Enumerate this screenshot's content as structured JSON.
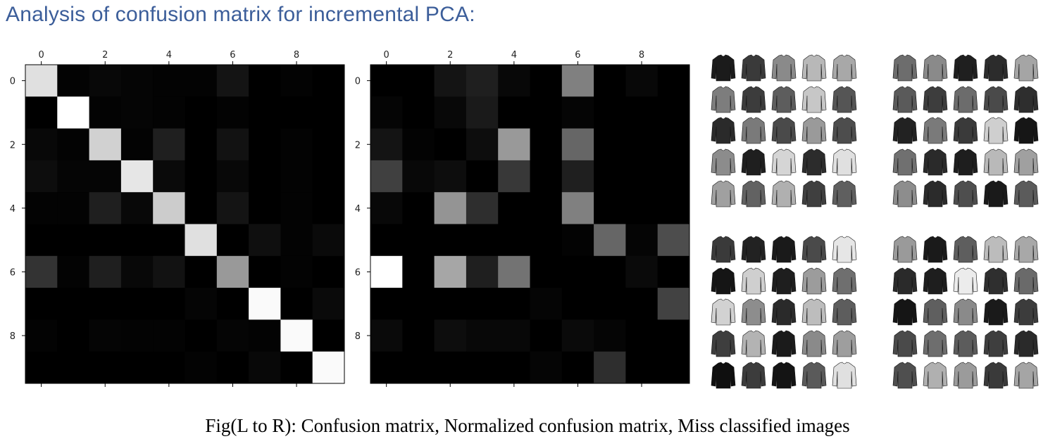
{
  "title": "Analysis of confusion matrix for incremental PCA:",
  "caption": "Fig(L to R): Confusion matrix, Normalized confusion matrix, Miss classified images",
  "chart_data": [
    {
      "type": "heatmap",
      "colormap": "gray",
      "x_ticks": [
        "0",
        "2",
        "4",
        "6",
        "8"
      ],
      "y_ticks": [
        "0",
        "2",
        "4",
        "6",
        "8"
      ],
      "values": [
        [
          0.88,
          0.01,
          0.03,
          0.02,
          0.01,
          0.01,
          0.08,
          0.0,
          0.01,
          0.0
        ],
        [
          0.0,
          1.0,
          0.01,
          0.02,
          0.01,
          0.0,
          0.01,
          0.0,
          0.0,
          0.0
        ],
        [
          0.03,
          0.01,
          0.82,
          0.01,
          0.12,
          0.0,
          0.07,
          0.0,
          0.01,
          0.0
        ],
        [
          0.05,
          0.02,
          0.02,
          0.9,
          0.04,
          0.0,
          0.03,
          0.0,
          0.01,
          0.0
        ],
        [
          0.01,
          0.01,
          0.12,
          0.03,
          0.8,
          0.0,
          0.08,
          0.0,
          0.01,
          0.0
        ],
        [
          0.0,
          0.0,
          0.0,
          0.0,
          0.0,
          0.88,
          0.0,
          0.06,
          0.01,
          0.04
        ],
        [
          0.2,
          0.01,
          0.12,
          0.03,
          0.07,
          0.0,
          0.6,
          0.0,
          0.01,
          0.0
        ],
        [
          0.0,
          0.0,
          0.0,
          0.0,
          0.0,
          0.02,
          0.0,
          0.98,
          0.0,
          0.04
        ],
        [
          0.01,
          0.0,
          0.02,
          0.01,
          0.01,
          0.0,
          0.02,
          0.01,
          0.98,
          0.0
        ],
        [
          0.0,
          0.0,
          0.0,
          0.0,
          0.0,
          0.01,
          0.0,
          0.03,
          0.0,
          0.98
        ]
      ]
    },
    {
      "type": "heatmap",
      "colormap": "gray",
      "x_ticks": [
        "0",
        "2",
        "4",
        "6",
        "8"
      ],
      "y_ticks": [
        "0",
        "2",
        "4",
        "6",
        "8"
      ],
      "values": [
        [
          0.0,
          0.0,
          0.08,
          0.12,
          0.03,
          0.0,
          0.5,
          0.0,
          0.03,
          0.0
        ],
        [
          0.02,
          0.0,
          0.03,
          0.1,
          0.0,
          0.0,
          0.02,
          0.0,
          0.0,
          0.0
        ],
        [
          0.08,
          0.01,
          0.0,
          0.05,
          0.6,
          0.0,
          0.4,
          0.0,
          0.0,
          0.0
        ],
        [
          0.25,
          0.03,
          0.05,
          0.0,
          0.22,
          0.0,
          0.12,
          0.0,
          0.0,
          0.0
        ],
        [
          0.03,
          0.0,
          0.58,
          0.18,
          0.0,
          0.0,
          0.5,
          0.0,
          0.0,
          0.0
        ],
        [
          0.0,
          0.0,
          0.0,
          0.0,
          0.0,
          0.0,
          0.01,
          0.4,
          0.02,
          0.3
        ],
        [
          1.0,
          0.0,
          0.65,
          0.12,
          0.45,
          0.0,
          0.0,
          0.0,
          0.04,
          0.0
        ],
        [
          0.0,
          0.0,
          0.0,
          0.0,
          0.0,
          0.02,
          0.0,
          0.0,
          0.0,
          0.26
        ],
        [
          0.04,
          0.0,
          0.05,
          0.03,
          0.03,
          0.0,
          0.04,
          0.02,
          0.0,
          0.0
        ],
        [
          0.0,
          0.0,
          0.0,
          0.0,
          0.0,
          0.02,
          0.0,
          0.18,
          0.0,
          0.0
        ]
      ]
    }
  ],
  "misclassified_panels": [
    {
      "shades": [
        "#1b1b1b",
        "#3a3a3a",
        "#8a8a8a",
        "#b8b8b8",
        "#a8a8a8",
        "#7d7d7d",
        "#3c3c3c",
        "#5d5d5d",
        "#c7c7c7",
        "#555555",
        "#2a2a2a",
        "#7a7a7a",
        "#4a4a4a",
        "#9a9a9a",
        "#4d4d4d",
        "#8c8c8c",
        "#1f1f1f",
        "#d5d5d5",
        "#2c2c2c",
        "#e0e0e0",
        "#a0a0a0",
        "#626262",
        "#b0b0b0",
        "#3f3f3f",
        "#5f5f5f"
      ]
    },
    {
      "shades": [
        "#6d6d6d",
        "#8a8a8a",
        "#1f1f1f",
        "#2c2c2c",
        "#a5a5a5",
        "#5a5a5a",
        "#3d3d3d",
        "#6c6c6c",
        "#4a4a4a",
        "#2e2e2e",
        "#222222",
        "#7a7a7a",
        "#3a3a3a",
        "#cfcfcf",
        "#161616",
        "#707070",
        "#2a2a2a",
        "#1e1e1e",
        "#b9b9b9",
        "#a0a0a0",
        "#8d8d8d",
        "#2b2b2b",
        "#4e4e4e",
        "#1a1a1a",
        "#5b5b5b"
      ]
    },
    {
      "shades": [
        "#3a3a3a",
        "#222222",
        "#1a1a1a",
        "#4a4a4a",
        "#e6e6e6",
        "#151515",
        "#cfcfcf",
        "#1e1e1e",
        "#9c9c9c",
        "#6f6f6f",
        "#d2d2d2",
        "#8d8d8d",
        "#2a2a2a",
        "#bdbdbd",
        "#5d5d5d",
        "#3e3e3e",
        "#b3b3b3",
        "#1b1b1b",
        "#8a8a8a",
        "#9e9e9e",
        "#0f0f0f",
        "#3c3c3c",
        "#141414",
        "#5a5a5a",
        "#e0e0e0"
      ]
    },
    {
      "shades": [
        "#9a9a9a",
        "#1a1a1a",
        "#5e5e5e",
        "#bcbcbc",
        "#a8a8a8",
        "#2a2a2a",
        "#1e1e1e",
        "#ececec",
        "#2f2f2f",
        "#6a6a6a",
        "#151515",
        "#5f5f5f",
        "#8a8a8a",
        "#1a1a1a",
        "#3c3c3c",
        "#4a4a4a",
        "#6e6e6e",
        "#5c5c5c",
        "#3e3e3e",
        "#2a2a2a",
        "#4f4f4f",
        "#b0b0b0",
        "#9b9b9b",
        "#3a3a3a",
        "#a5a5a5"
      ]
    }
  ]
}
